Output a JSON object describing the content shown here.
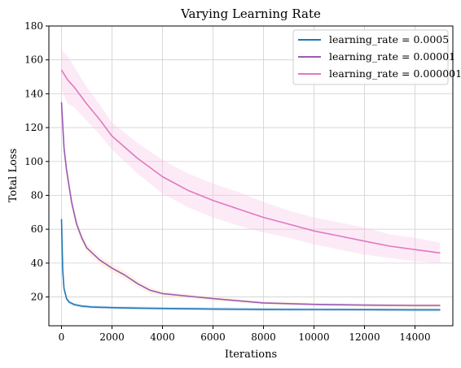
{
  "chart_data": {
    "type": "line",
    "title": "Varying Learning Rate",
    "xlabel": "Iterations",
    "ylabel": "Total Loss",
    "xlim": [
      -500,
      15500
    ],
    "ylim": [
      3,
      180
    ],
    "xticks": [
      0,
      2000,
      4000,
      6000,
      8000,
      10000,
      12000,
      14000
    ],
    "yticks": [
      20,
      40,
      60,
      80,
      100,
      120,
      140,
      160,
      180
    ],
    "grid": true,
    "legend_position": "top-right",
    "series": [
      {
        "name": "learning_rate = 0.0005",
        "color": "#1f77b4",
        "band_color": "#aec7e8",
        "x": [
          0,
          50,
          100,
          200,
          300,
          500,
          800,
          1200,
          2000,
          3000,
          4000,
          6000,
          8000,
          10000,
          12000,
          14000,
          15000
        ],
        "y": [
          66,
          36,
          25,
          19,
          17,
          15.5,
          14.6,
          14.1,
          13.7,
          13.4,
          13.2,
          12.9,
          12.7,
          12.6,
          12.5,
          12.4,
          12.4
        ],
        "band": [
          1.5,
          1.5,
          1.5,
          1.5,
          1.2,
          1.0,
          1.0,
          1.0,
          1.0,
          1.0,
          1.0,
          1.0,
          1.0,
          1.0,
          1.0,
          1.0,
          1.0
        ]
      },
      {
        "name": "learning_rate = 0.00001",
        "color": "#9b59b6",
        "band_color": "#ffdcb8",
        "x": [
          0,
          100,
          200,
          400,
          600,
          800,
          1000,
          1500,
          2000,
          2500,
          3000,
          3500,
          4000,
          5000,
          6000,
          8000,
          10000,
          12000,
          14000,
          15000
        ],
        "y": [
          135,
          108,
          95,
          76,
          63,
          55,
          49,
          42,
          37,
          33,
          28,
          24,
          22,
          20.5,
          19,
          16.5,
          15.6,
          15.2,
          15,
          15
        ],
        "band": [
          3,
          4,
          4,
          4,
          3,
          3,
          2.5,
          2.5,
          2.5,
          2.5,
          2,
          2,
          1.5,
          1.2,
          1.2,
          1,
          1,
          1,
          1,
          1
        ]
      },
      {
        "name": "learning_rate = 0.000001",
        "color": "#e377c2",
        "band_color": "#f7c6e6",
        "x": [
          0,
          250,
          500,
          1000,
          1500,
          2000,
          3000,
          4000,
          5000,
          6000,
          7000,
          8000,
          9000,
          10000,
          11000,
          12000,
          13000,
          14000,
          15000
        ],
        "y": [
          154,
          148,
          144,
          134,
          125,
          115,
          102,
          91,
          83,
          77,
          72,
          67,
          63,
          59,
          56,
          53,
          50,
          48,
          46
        ],
        "band": [
          12,
          14,
          12,
          10,
          9,
          8,
          9,
          10,
          10,
          10,
          10,
          9,
          8,
          8,
          8,
          8,
          7,
          7,
          6
        ]
      }
    ]
  }
}
